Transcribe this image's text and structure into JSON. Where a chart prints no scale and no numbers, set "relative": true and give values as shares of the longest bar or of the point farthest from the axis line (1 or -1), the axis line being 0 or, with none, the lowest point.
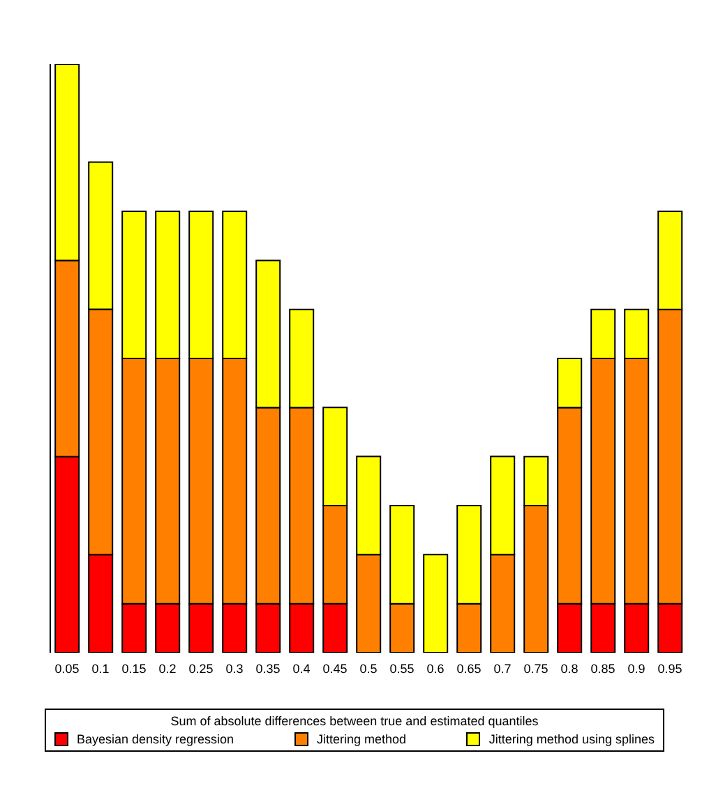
{
  "chart_data": {
    "type": "bar",
    "stacked": true,
    "relative": true,
    "legend": "bottom",
    "legend_title": "Sum of absolute differences between true and estimated quantiles",
    "categories": [
      "0.05",
      "0.1",
      "0.15",
      "0.2",
      "0.25",
      "0.3",
      "0.35",
      "0.4",
      "0.45",
      "0.5",
      "0.55",
      "0.6",
      "0.65",
      "0.7",
      "0.75",
      "0.8",
      "0.85",
      "0.9",
      "0.95"
    ],
    "series": [
      {
        "name": "Bayesian density regression",
        "color": "#ff0000",
        "values": [
          0.3333,
          0.1667,
          0.0833,
          0.0833,
          0.0833,
          0.0833,
          0.0833,
          0.0833,
          0.0833,
          0,
          0,
          0,
          0,
          0,
          0,
          0.0833,
          0.0833,
          0.0833,
          0.0833
        ]
      },
      {
        "name": "Jittering method",
        "color": "#ff8000",
        "values": [
          0.3333,
          0.4167,
          0.4167,
          0.4167,
          0.4167,
          0.4167,
          0.3333,
          0.3333,
          0.1667,
          0.1667,
          0.0833,
          0,
          0.0833,
          0.1667,
          0.25,
          0.3333,
          0.4167,
          0.4167,
          0.5
        ]
      },
      {
        "name": "Jittering method using splines",
        "color": "#ffff00",
        "values": [
          0.3334,
          0.25,
          0.25,
          0.25,
          0.25,
          0.25,
          0.25,
          0.1667,
          0.1667,
          0.1667,
          0.1667,
          0.1667,
          0.1667,
          0.1667,
          0.0833,
          0.0833,
          0.0833,
          0.0833,
          0.1667
        ]
      }
    ]
  }
}
